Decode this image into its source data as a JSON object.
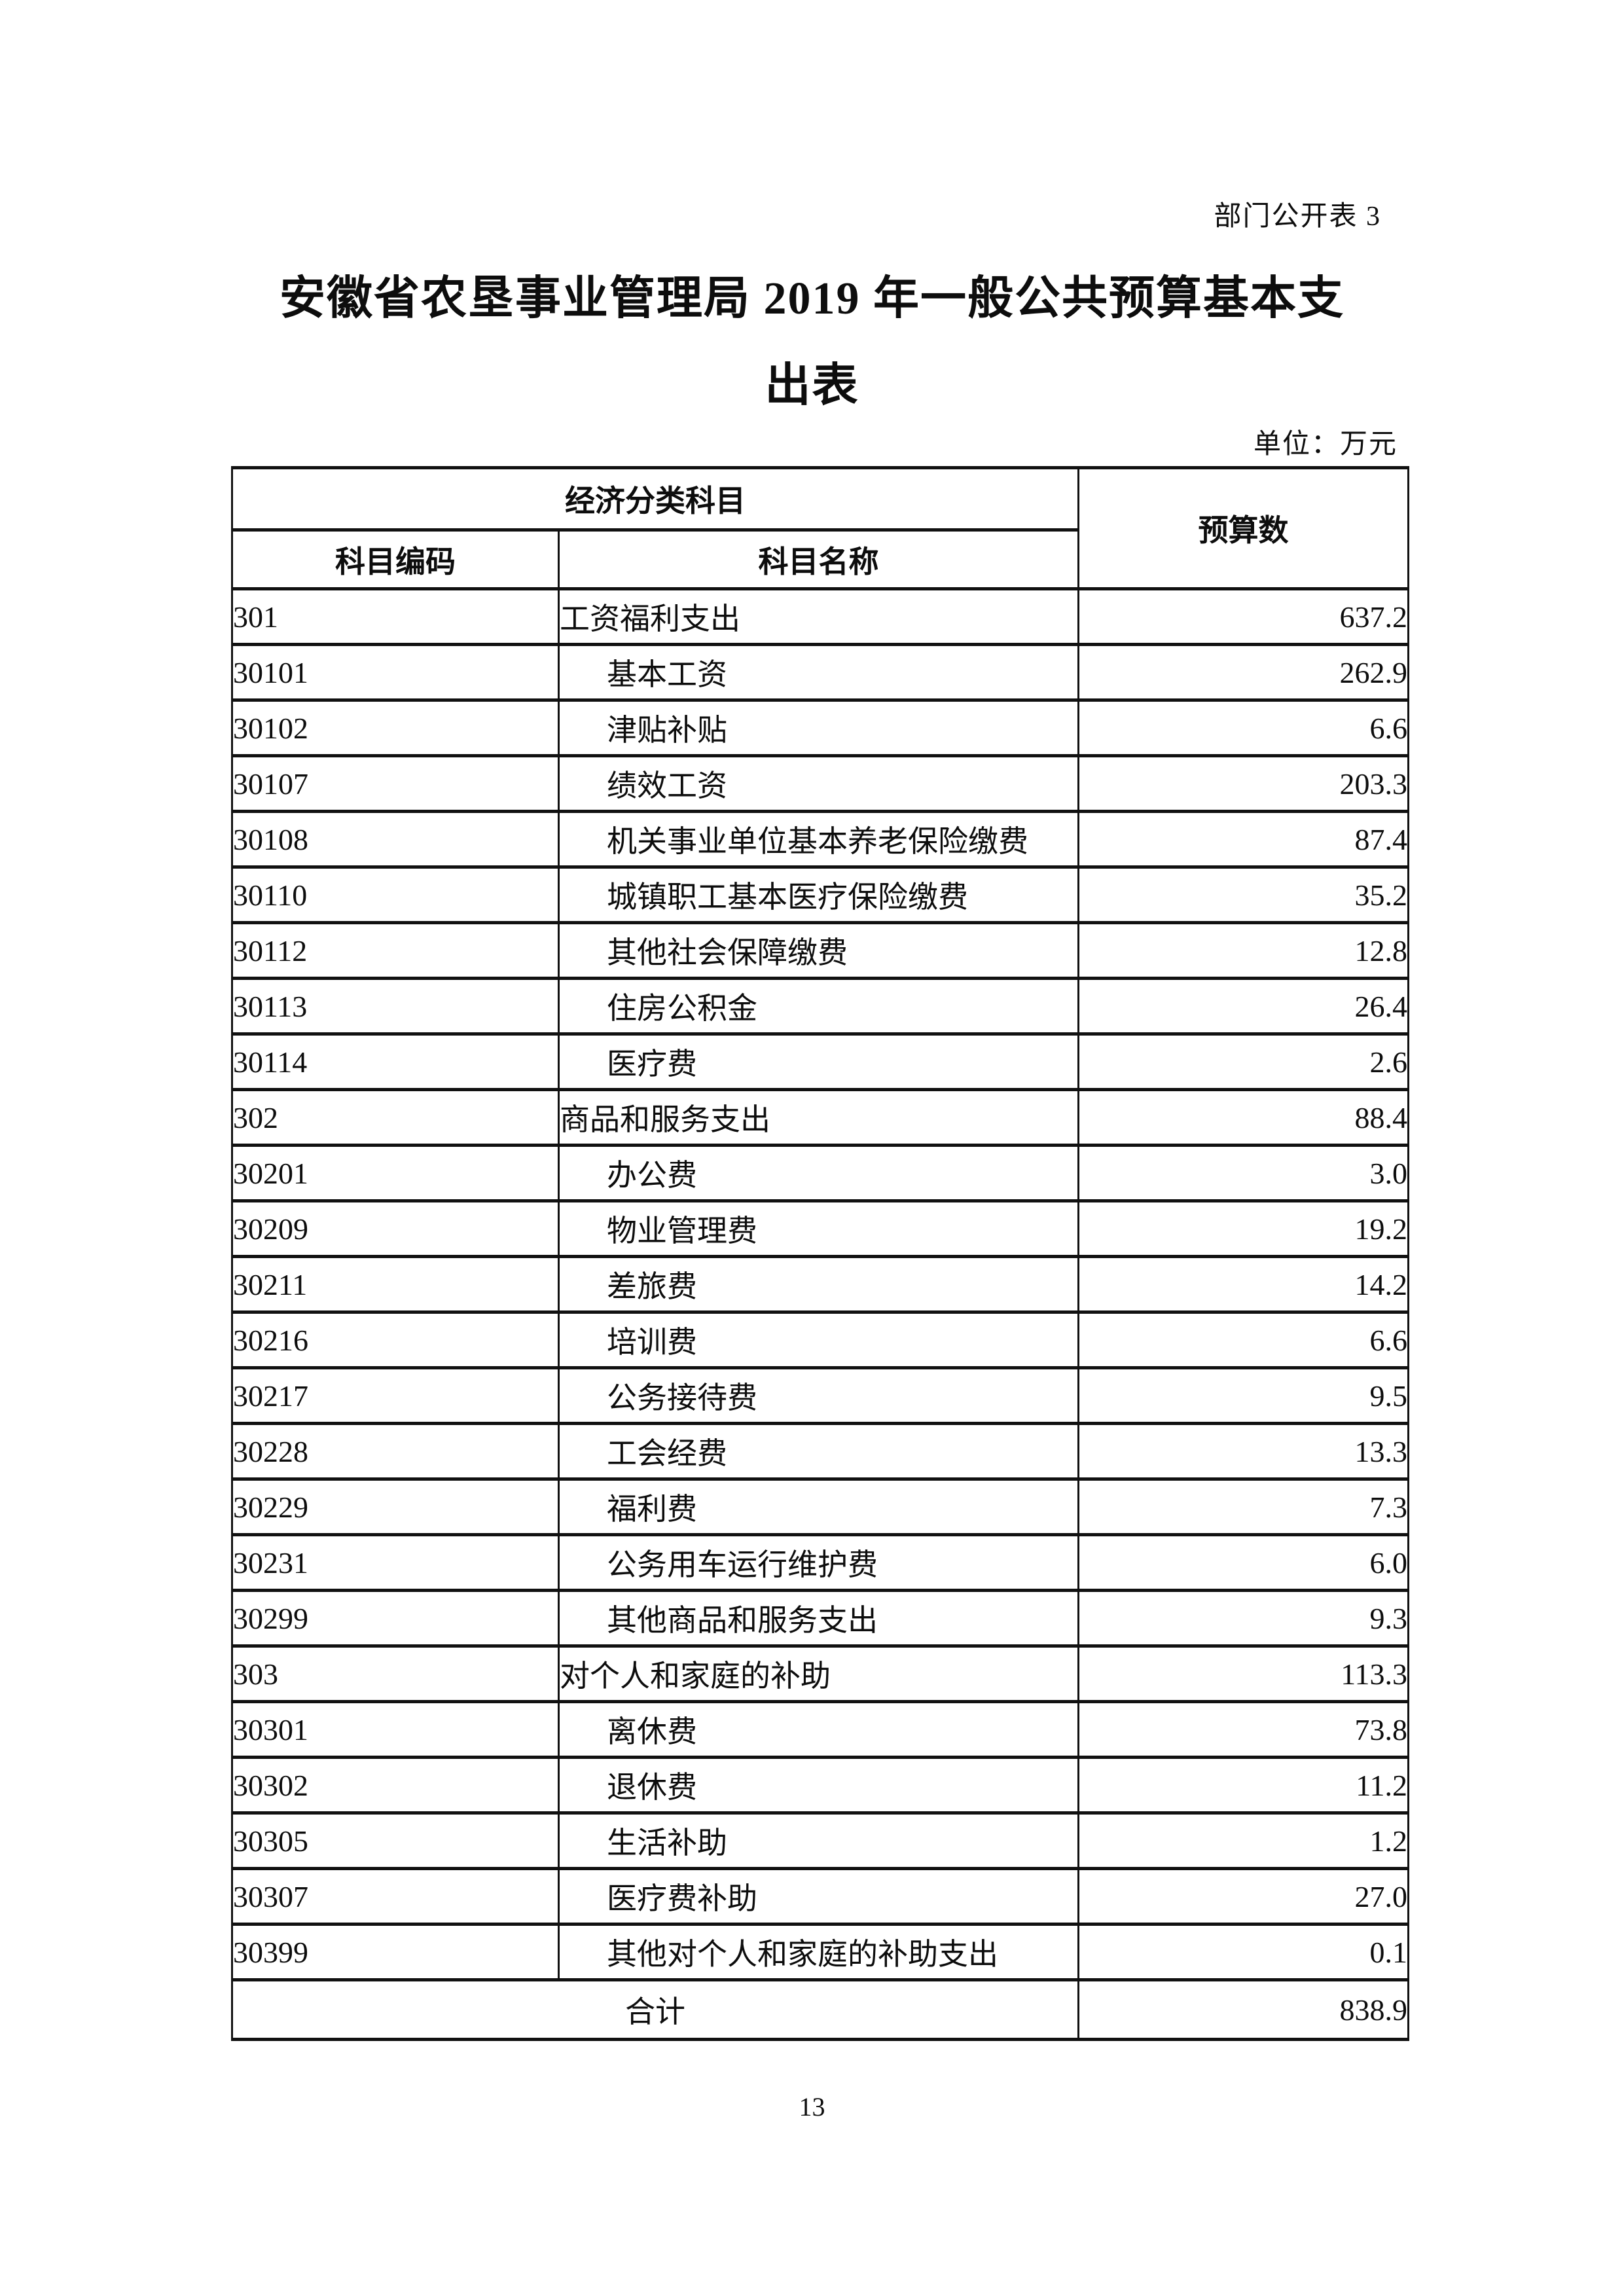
{
  "page": {
    "corner_label": "部门公开表 3",
    "title_line1": "安徽省农垦事业管理局 2019 年一般公共预算基本支",
    "title_line2": "出表",
    "unit_label": "单位：万元",
    "page_number": "13"
  },
  "table": {
    "header": {
      "group": "经济分类科目",
      "code": "科目编码",
      "name": "科目名称",
      "budget": "预算数"
    },
    "rows": [
      {
        "code": "301",
        "name": "工资福利支出",
        "value": "637.2",
        "level": 1
      },
      {
        "code": "30101",
        "name": "基本工资",
        "value": "262.9",
        "level": 2
      },
      {
        "code": "30102",
        "name": "津贴补贴",
        "value": "6.6",
        "level": 2
      },
      {
        "code": "30107",
        "name": "绩效工资",
        "value": "203.3",
        "level": 2
      },
      {
        "code": "30108",
        "name": "机关事业单位基本养老保险缴费",
        "value": "87.4",
        "level": 2
      },
      {
        "code": "30110",
        "name": "城镇职工基本医疗保险缴费",
        "value": "35.2",
        "level": 2
      },
      {
        "code": "30112",
        "name": "其他社会保障缴费",
        "value": "12.8",
        "level": 2
      },
      {
        "code": "30113",
        "name": "住房公积金",
        "value": "26.4",
        "level": 2
      },
      {
        "code": "30114",
        "name": "医疗费",
        "value": "2.6",
        "level": 2
      },
      {
        "code": "302",
        "name": "商品和服务支出",
        "value": "88.4",
        "level": 1
      },
      {
        "code": "30201",
        "name": "办公费",
        "value": "3.0",
        "level": 2
      },
      {
        "code": "30209",
        "name": "物业管理费",
        "value": "19.2",
        "level": 2
      },
      {
        "code": "30211",
        "name": "差旅费",
        "value": "14.2",
        "level": 2
      },
      {
        "code": "30216",
        "name": "培训费",
        "value": "6.6",
        "level": 2
      },
      {
        "code": "30217",
        "name": "公务接待费",
        "value": "9.5",
        "level": 2
      },
      {
        "code": "30228",
        "name": "工会经费",
        "value": "13.3",
        "level": 2
      },
      {
        "code": "30229",
        "name": "福利费",
        "value": "7.3",
        "level": 2
      },
      {
        "code": "30231",
        "name": "公务用车运行维护费",
        "value": "6.0",
        "level": 2
      },
      {
        "code": "30299",
        "name": "其他商品和服务支出",
        "value": "9.3",
        "level": 2
      },
      {
        "code": "303",
        "name": "对个人和家庭的补助",
        "value": "113.3",
        "level": 1
      },
      {
        "code": "30301",
        "name": "离休费",
        "value": "73.8",
        "level": 2
      },
      {
        "code": "30302",
        "name": "退休费",
        "value": "11.2",
        "level": 2
      },
      {
        "code": "30305",
        "name": "生活补助",
        "value": "1.2",
        "level": 2
      },
      {
        "code": "30307",
        "name": "医疗费补助",
        "value": "27.0",
        "level": 2
      },
      {
        "code": "30399",
        "name": "其他对个人和家庭的补助支出",
        "value": "0.1",
        "level": 2
      }
    ],
    "total": {
      "label": "合计",
      "value": "838.9"
    }
  }
}
